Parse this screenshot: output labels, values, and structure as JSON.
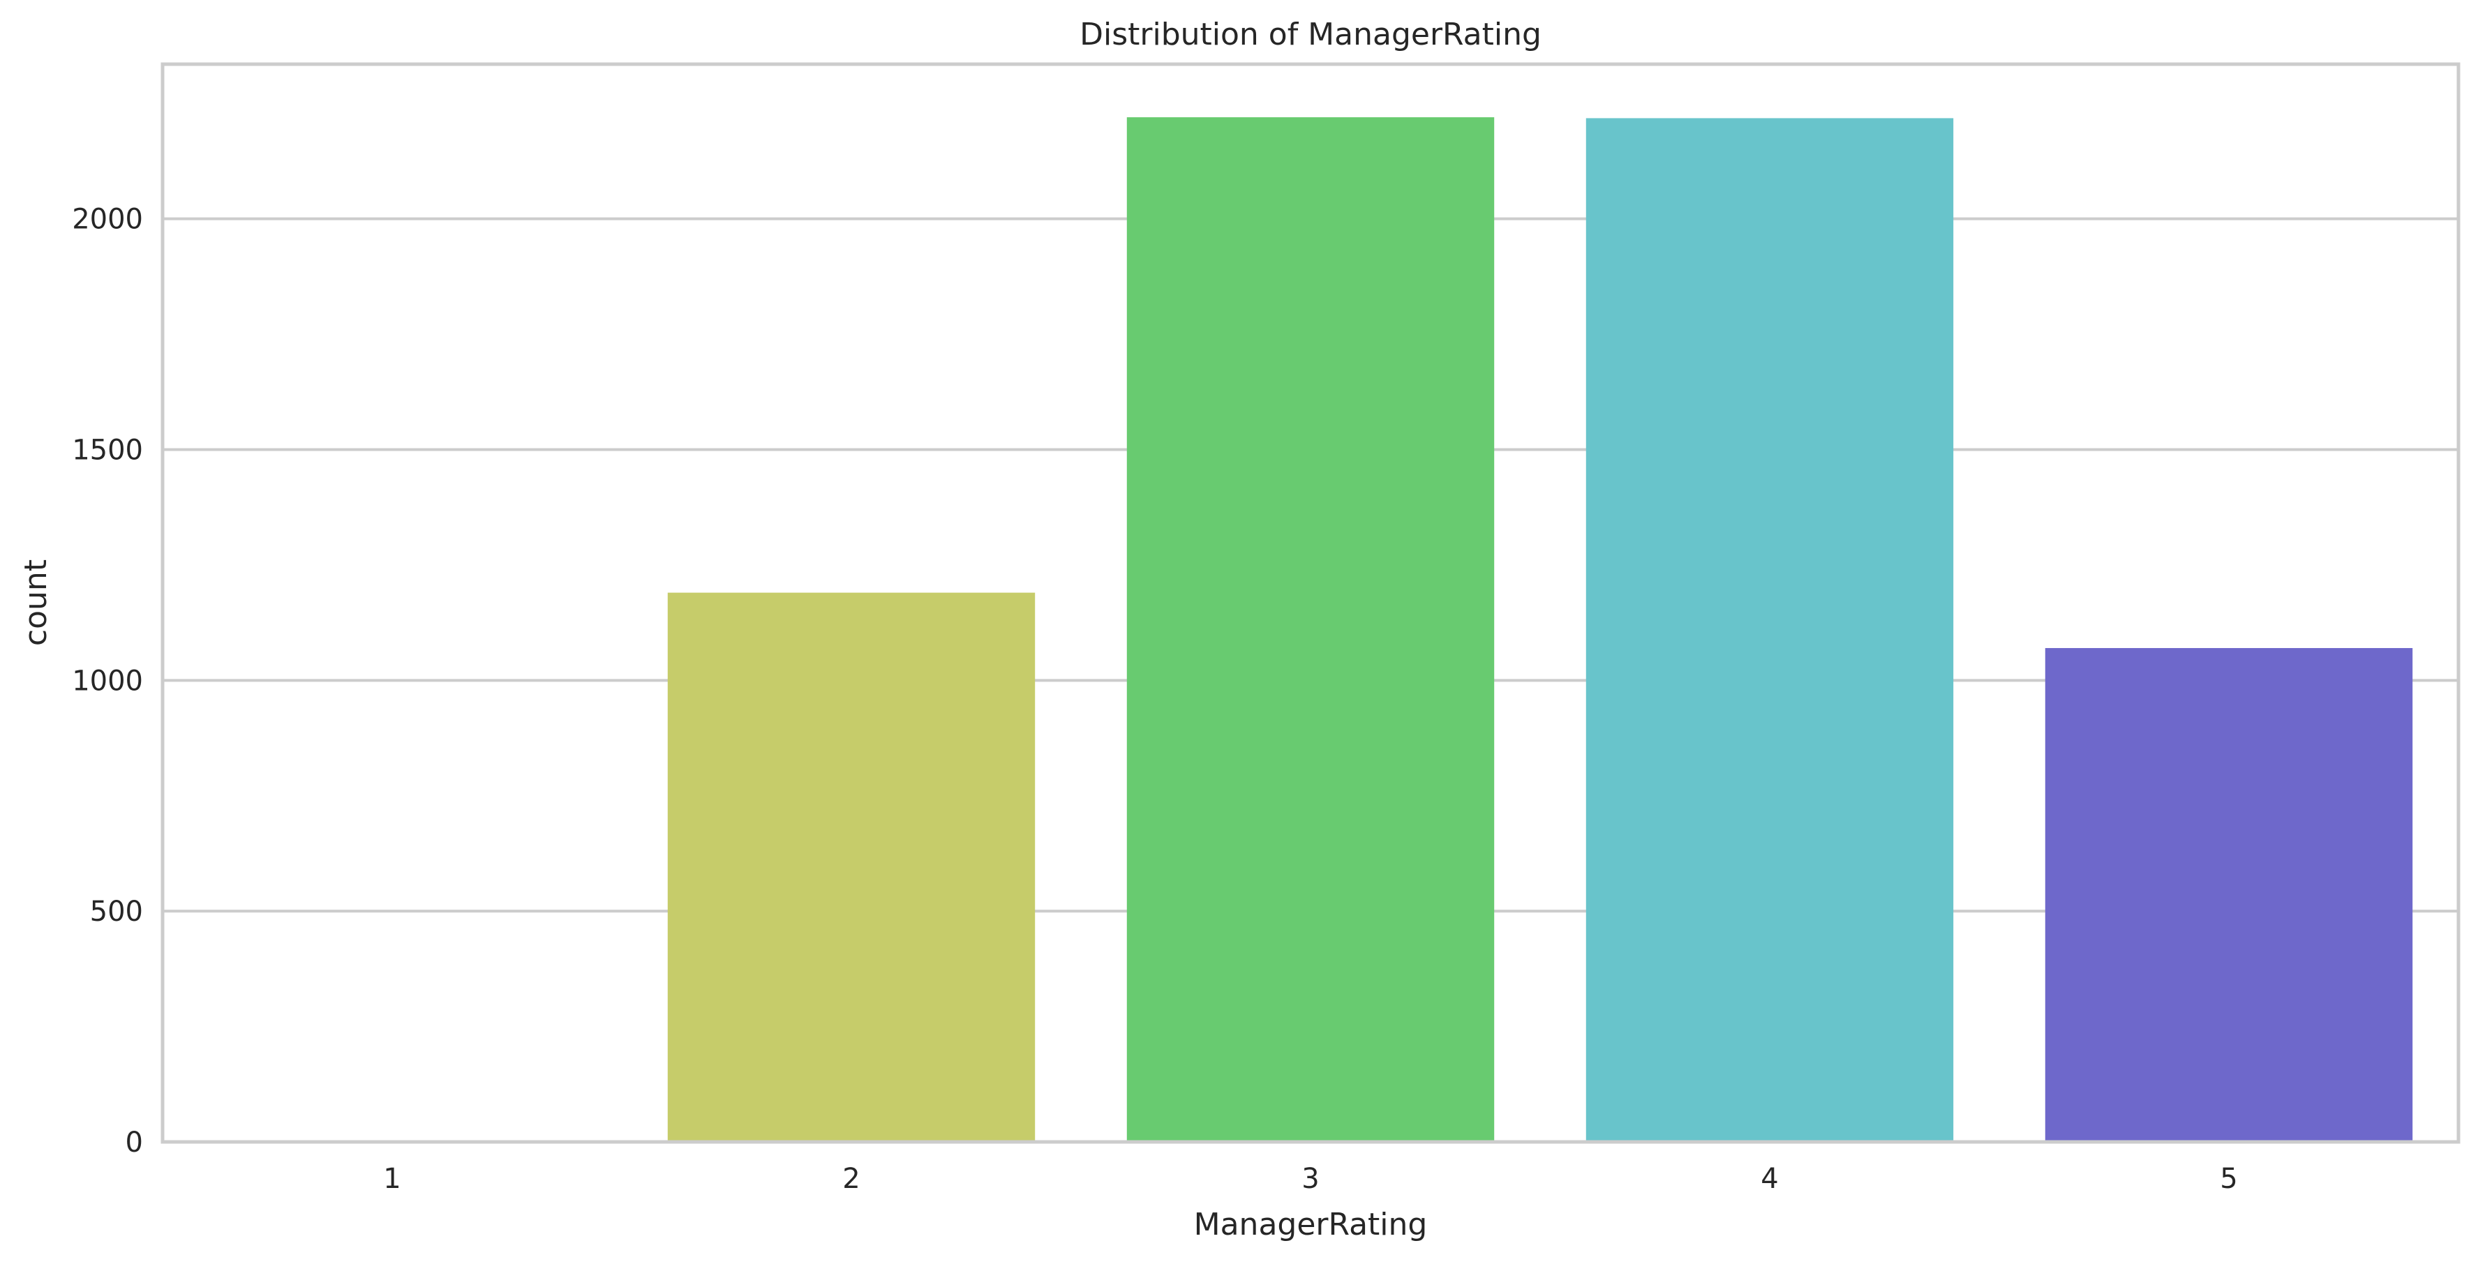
{
  "chart_data": {
    "type": "bar",
    "title": "Distribution of ManagerRating",
    "xlabel": "ManagerRating",
    "ylabel": "count",
    "categories": [
      "1",
      "2",
      "3",
      "4",
      "5"
    ],
    "values": [
      0,
      1190,
      2220,
      2218,
      1070
    ],
    "colors": [
      "#d45352",
      "#c6cc6a",
      "#68cb70",
      "#68c4cb",
      "#6e68cb"
    ],
    "yticks": [
      0,
      500,
      1000,
      1500,
      2000
    ],
    "ylim": [
      0,
      2335
    ],
    "grid": true,
    "legend": "none",
    "background": "#ffffff",
    "grid_color": "#cccccc",
    "spine_color": "#cccccc"
  }
}
